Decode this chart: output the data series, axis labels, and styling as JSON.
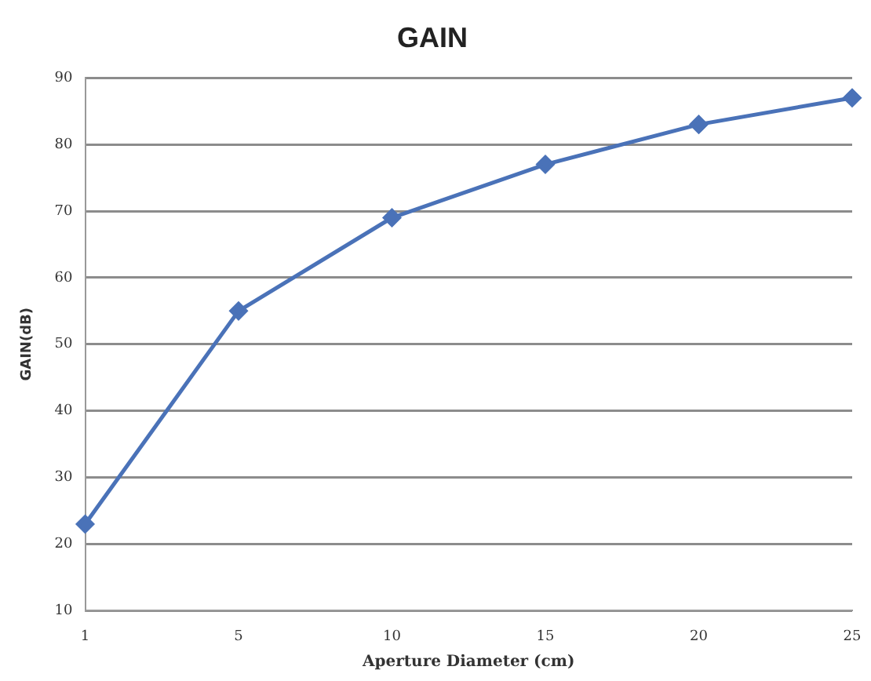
{
  "chart_data": {
    "type": "line",
    "title": "GAIN",
    "xlabel": "Aperture Diameter (cm)",
    "ylabel": "GAIN(dB)",
    "categories": [
      "1",
      "5",
      "10",
      "15",
      "20",
      "25"
    ],
    "series": [
      {
        "color": "#4a72b8",
        "values": [
          23,
          55,
          69,
          77,
          83,
          87
        ]
      }
    ],
    "ylim": [
      10,
      90
    ],
    "yticks": [
      10,
      20,
      30,
      40,
      50,
      60,
      70,
      80,
      90
    ],
    "grid": "y",
    "legend": false,
    "marker": "diamond",
    "line_style": "solid"
  }
}
